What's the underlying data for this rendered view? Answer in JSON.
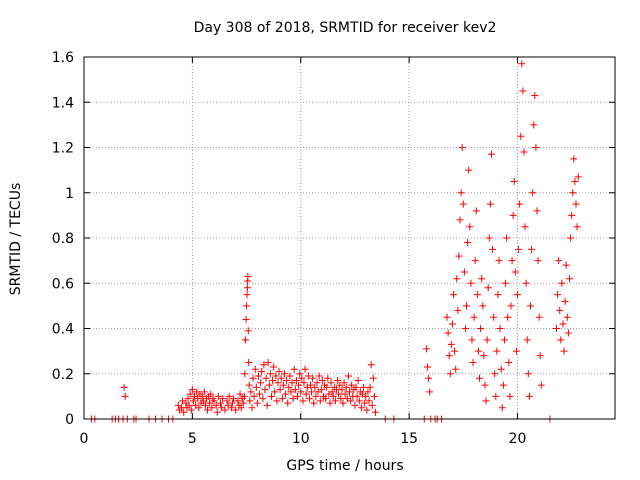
{
  "chart_data": {
    "type": "scatter",
    "title": "Day 308 of 2018, SRMTID for receiver kev2",
    "xlabel": "GPS time / hours",
    "ylabel": "SRMTID / TECUs",
    "xlim": [
      0,
      24.5
    ],
    "ylim": [
      0,
      1.6
    ],
    "xticks": [
      0,
      5,
      10,
      15,
      20
    ],
    "yticks": [
      0,
      0.2,
      0.4,
      0.6,
      0.8,
      1,
      1.2,
      1.4,
      1.6
    ],
    "ytick_labels": [
      "0",
      "0.2",
      "0.4",
      "0.6",
      "0.8",
      "1",
      "1.2",
      "1.4",
      "1.6"
    ],
    "grid": true,
    "marker": "+",
    "series": [
      {
        "name": "kev2",
        "color": "#ff0000",
        "points": [
          [
            0.35,
            0
          ],
          [
            0.5,
            0
          ],
          [
            1.3,
            0
          ],
          [
            1.45,
            0
          ],
          [
            1.6,
            0
          ],
          [
            1.8,
            0
          ],
          [
            1.85,
            0.14
          ],
          [
            1.9,
            0.1
          ],
          [
            2.0,
            0
          ],
          [
            2.3,
            0
          ],
          [
            2.4,
            0
          ],
          [
            3.0,
            0
          ],
          [
            3.3,
            0
          ],
          [
            3.6,
            0
          ],
          [
            3.9,
            0
          ],
          [
            4.1,
            0
          ],
          [
            4.35,
            0.06
          ],
          [
            4.4,
            0.04
          ],
          [
            4.5,
            0.05
          ],
          [
            4.55,
            0.08
          ],
          [
            4.6,
            0.03
          ],
          [
            4.7,
            0.07
          ],
          [
            4.75,
            0.05
          ],
          [
            4.8,
            0.09
          ],
          [
            4.85,
            0.06
          ],
          [
            4.9,
            0.11
          ],
          [
            4.95,
            0.04
          ],
          [
            5.0,
            0.13
          ],
          [
            5.05,
            0.08
          ],
          [
            5.1,
            0.1
          ],
          [
            5.15,
            0.06
          ],
          [
            5.2,
            0.12
          ],
          [
            5.25,
            0.09
          ],
          [
            5.3,
            0.05
          ],
          [
            5.35,
            0.11
          ],
          [
            5.4,
            0.07
          ],
          [
            5.45,
            0.1
          ],
          [
            5.5,
            0.08
          ],
          [
            5.55,
            0.12
          ],
          [
            5.6,
            0.06
          ],
          [
            5.65,
            0.09
          ],
          [
            5.7,
            0.04
          ],
          [
            5.75,
            0.1
          ],
          [
            5.8,
            0.07
          ],
          [
            5.85,
            0.11
          ],
          [
            5.9,
            0.05
          ],
          [
            5.95,
            0.09
          ],
          [
            6.0,
            0.08
          ],
          [
            6.1,
            0.06
          ],
          [
            6.15,
            0.03
          ],
          [
            6.2,
            0.1
          ],
          [
            6.3,
            0.07
          ],
          [
            6.35,
            0.05
          ],
          [
            6.4,
            0.09
          ],
          [
            6.5,
            0.04
          ],
          [
            6.6,
            0.08
          ],
          [
            6.65,
            0.06
          ],
          [
            6.7,
            0.1
          ],
          [
            6.8,
            0.05
          ],
          [
            6.85,
            0.07
          ],
          [
            6.9,
            0.09
          ],
          [
            7.0,
            0.04
          ],
          [
            7.1,
            0.08
          ],
          [
            7.15,
            0.06
          ],
          [
            7.2,
            0.11
          ],
          [
            7.25,
            0.05
          ],
          [
            7.3,
            0.09
          ],
          [
            7.35,
            0.07
          ],
          [
            7.4,
            0.1
          ],
          [
            7.42,
            0.2
          ],
          [
            7.45,
            0.35
          ],
          [
            7.48,
            0.44
          ],
          [
            7.5,
            0.5
          ],
          [
            7.52,
            0.55
          ],
          [
            7.54,
            0.58
          ],
          [
            7.55,
            0.61
          ],
          [
            7.56,
            0.63
          ],
          [
            7.58,
            0.39
          ],
          [
            7.6,
            0.25
          ],
          [
            7.62,
            0.15
          ],
          [
            7.65,
            0.08
          ],
          [
            7.7,
            0.12
          ],
          [
            7.75,
            0.05
          ],
          [
            7.8,
            0.18
          ],
          [
            7.85,
            0.1
          ],
          [
            7.9,
            0.22
          ],
          [
            7.95,
            0.14
          ],
          [
            8.0,
            0.07
          ],
          [
            8.05,
            0.19
          ],
          [
            8.1,
            0.11
          ],
          [
            8.15,
            0.16
          ],
          [
            8.2,
            0.21
          ],
          [
            8.25,
            0.09
          ],
          [
            8.3,
            0.24
          ],
          [
            8.35,
            0.13
          ],
          [
            8.4,
            0.18
          ],
          [
            8.45,
            0.06
          ],
          [
            8.5,
            0.25
          ],
          [
            8.55,
            0.15
          ],
          [
            8.6,
            0.2
          ],
          [
            8.65,
            0.1
          ],
          [
            8.7,
            0.17
          ],
          [
            8.75,
            0.23
          ],
          [
            8.8,
            0.12
          ],
          [
            8.85,
            0.19
          ],
          [
            8.9,
            0.08
          ],
          [
            8.95,
            0.16
          ],
          [
            9.0,
            0.21
          ],
          [
            9.05,
            0.13
          ],
          [
            9.1,
            0.18
          ],
          [
            9.15,
            0.09
          ],
          [
            9.2,
            0.15
          ],
          [
            9.25,
            0.2
          ],
          [
            9.3,
            0.11
          ],
          [
            9.35,
            0.17
          ],
          [
            9.4,
            0.07
          ],
          [
            9.45,
            0.14
          ],
          [
            9.5,
            0.19
          ],
          [
            9.55,
            0.12
          ],
          [
            9.6,
            0.16
          ],
          [
            9.65,
            0.09
          ],
          [
            9.7,
            0.22
          ],
          [
            9.75,
            0.13
          ],
          [
            9.8,
            0.17
          ],
          [
            9.85,
            0.1
          ],
          [
            9.9,
            0.15
          ],
          [
            9.95,
            0.2
          ],
          [
            10.0,
            0.12
          ],
          [
            10.05,
            0.18
          ],
          [
            10.1,
            0.08
          ],
          [
            10.15,
            0.16
          ],
          [
            10.2,
            0.22
          ],
          [
            10.25,
            0.11
          ],
          [
            10.3,
            0.14
          ],
          [
            10.35,
            0.19
          ],
          [
            10.4,
            0.09
          ],
          [
            10.45,
            0.15
          ],
          [
            10.5,
            0.12
          ],
          [
            10.55,
            0.18
          ],
          [
            10.6,
            0.07
          ],
          [
            10.65,
            0.14
          ],
          [
            10.7,
            0.1
          ],
          [
            10.75,
            0.16
          ],
          [
            10.8,
            0.12
          ],
          [
            10.85,
            0.19
          ],
          [
            10.9,
            0.08
          ],
          [
            10.95,
            0.13
          ],
          [
            11.0,
            0.17
          ],
          [
            11.05,
            0.1
          ],
          [
            11.1,
            0.15
          ],
          [
            11.15,
            0.09
          ],
          [
            11.2,
            0.14
          ],
          [
            11.25,
            0.18
          ],
          [
            11.3,
            0.11
          ],
          [
            11.35,
            0.07
          ],
          [
            11.4,
            0.16
          ],
          [
            11.45,
            0.12
          ],
          [
            11.5,
            0.1
          ],
          [
            11.55,
            0.14
          ],
          [
            11.6,
            0.08
          ],
          [
            11.65,
            0.13
          ],
          [
            11.7,
            0.17
          ],
          [
            11.75,
            0.11
          ],
          [
            11.8,
            0.15
          ],
          [
            11.85,
            0.09
          ],
          [
            11.9,
            0.13
          ],
          [
            11.95,
            0.07
          ],
          [
            12.0,
            0.16
          ],
          [
            12.05,
            0.11
          ],
          [
            12.1,
            0.14
          ],
          [
            12.15,
            0.09
          ],
          [
            12.2,
            0.19
          ],
          [
            12.25,
            0.12
          ],
          [
            12.3,
            0.08
          ],
          [
            12.35,
            0.15
          ],
          [
            12.4,
            0.1
          ],
          [
            12.45,
            0.13
          ],
          [
            12.5,
            0.06
          ],
          [
            12.55,
            0.14
          ],
          [
            12.6,
            0.1
          ],
          [
            12.65,
            0.17
          ],
          [
            12.7,
            0.08
          ],
          [
            12.75,
            0.12
          ],
          [
            12.8,
            0.05
          ],
          [
            12.85,
            0.11
          ],
          [
            12.9,
            0.14
          ],
          [
            12.95,
            0.07
          ],
          [
            13.0,
            0.1
          ],
          [
            13.05,
            0.04
          ],
          [
            13.1,
            0.12
          ],
          [
            13.15,
            0.08
          ],
          [
            13.2,
            0.14
          ],
          [
            13.25,
            0.24
          ],
          [
            13.3,
            0.06
          ],
          [
            13.35,
            0.18
          ],
          [
            13.4,
            0.1
          ],
          [
            13.45,
            0.03
          ],
          [
            13.9,
            0
          ],
          [
            14.3,
            0
          ],
          [
            15.7,
            0
          ],
          [
            15.8,
            0.31
          ],
          [
            15.85,
            0.23
          ],
          [
            15.9,
            0.18
          ],
          [
            15.95,
            0.12
          ],
          [
            16.0,
            0
          ],
          [
            16.2,
            0
          ],
          [
            16.3,
            0
          ],
          [
            16.5,
            0
          ],
          [
            16.75,
            0.45
          ],
          [
            16.8,
            0.38
          ],
          [
            16.85,
            0.28
          ],
          [
            16.9,
            0.2
          ],
          [
            16.95,
            0.33
          ],
          [
            17.0,
            0.42
          ],
          [
            17.05,
            0.55
          ],
          [
            17.1,
            0.3
          ],
          [
            17.15,
            0.22
          ],
          [
            17.2,
            0.62
          ],
          [
            17.25,
            0.48
          ],
          [
            17.3,
            0.72
          ],
          [
            17.35,
            0.88
          ],
          [
            17.4,
            1.0
          ],
          [
            17.45,
            1.2
          ],
          [
            17.5,
            0.95
          ],
          [
            17.55,
            0.65
          ],
          [
            17.6,
            0.4
          ],
          [
            17.65,
            0.5
          ],
          [
            17.7,
            0.78
          ],
          [
            17.75,
            1.1
          ],
          [
            17.8,
            0.85
          ],
          [
            17.85,
            0.6
          ],
          [
            17.9,
            0.35
          ],
          [
            17.95,
            0.25
          ],
          [
            18.0,
            0.45
          ],
          [
            18.05,
            0.7
          ],
          [
            18.1,
            0.92
          ],
          [
            18.15,
            0.55
          ],
          [
            18.2,
            0.3
          ],
          [
            18.25,
            0.18
          ],
          [
            18.3,
            0.4
          ],
          [
            18.35,
            0.62
          ],
          [
            18.4,
            0.5
          ],
          [
            18.45,
            0.28
          ],
          [
            18.5,
            0.15
          ],
          [
            18.55,
            0.08
          ],
          [
            18.6,
            0.35
          ],
          [
            18.65,
            0.58
          ],
          [
            18.7,
            0.8
          ],
          [
            18.75,
            0.95
          ],
          [
            18.8,
            1.17
          ],
          [
            18.85,
            0.75
          ],
          [
            18.9,
            0.45
          ],
          [
            18.95,
            0.2
          ],
          [
            19.0,
            0.1
          ],
          [
            19.05,
            0.3
          ],
          [
            19.1,
            0.55
          ],
          [
            19.15,
            0.7
          ],
          [
            19.2,
            0.4
          ],
          [
            19.25,
            0.22
          ],
          [
            19.3,
            0.05
          ],
          [
            19.35,
            0.15
          ],
          [
            19.4,
            0.35
          ],
          [
            19.45,
            0.6
          ],
          [
            19.5,
            0.8
          ],
          [
            19.55,
            0.45
          ],
          [
            19.6,
            0.25
          ],
          [
            19.65,
            0.1
          ],
          [
            19.7,
            0.5
          ],
          [
            19.75,
            0.7
          ],
          [
            19.8,
            0.9
          ],
          [
            19.85,
            1.05
          ],
          [
            19.9,
            0.65
          ],
          [
            19.95,
            0.3
          ],
          [
            20.0,
            0.55
          ],
          [
            20.05,
            0.75
          ],
          [
            20.1,
            0.95
          ],
          [
            20.15,
            1.25
          ],
          [
            20.2,
            1.57
          ],
          [
            20.25,
            1.45
          ],
          [
            20.3,
            1.18
          ],
          [
            20.35,
            0.85
          ],
          [
            20.4,
            0.6
          ],
          [
            20.45,
            0.35
          ],
          [
            20.5,
            0.2
          ],
          [
            20.55,
            0.1
          ],
          [
            20.6,
            0.5
          ],
          [
            20.65,
            0.75
          ],
          [
            20.7,
            1.0
          ],
          [
            20.75,
            1.3
          ],
          [
            20.8,
            1.43
          ],
          [
            20.85,
            1.2
          ],
          [
            20.9,
            0.92
          ],
          [
            20.95,
            0.7
          ],
          [
            21.0,
            0.45
          ],
          [
            21.05,
            0.28
          ],
          [
            21.1,
            0.15
          ],
          [
            21.5,
            0
          ],
          [
            21.8,
            0.4
          ],
          [
            21.85,
            0.55
          ],
          [
            21.9,
            0.7
          ],
          [
            21.95,
            0.48
          ],
          [
            22.0,
            0.35
          ],
          [
            22.05,
            0.6
          ],
          [
            22.1,
            0.42
          ],
          [
            22.15,
            0.3
          ],
          [
            22.2,
            0.52
          ],
          [
            22.25,
            0.68
          ],
          [
            22.3,
            0.45
          ],
          [
            22.35,
            0.38
          ],
          [
            22.4,
            0.62
          ],
          [
            22.45,
            0.8
          ],
          [
            22.5,
            0.9
          ],
          [
            22.55,
            1.0
          ],
          [
            22.6,
            1.15
          ],
          [
            22.65,
            1.05
          ],
          [
            22.7,
            0.95
          ],
          [
            22.75,
            0.85
          ],
          [
            22.8,
            1.07
          ]
        ]
      }
    ]
  }
}
